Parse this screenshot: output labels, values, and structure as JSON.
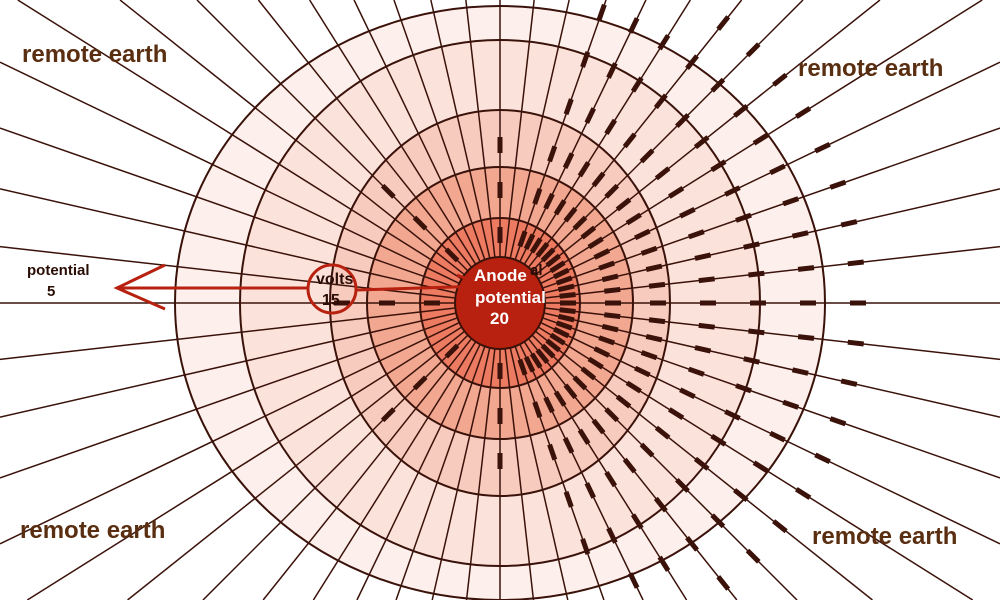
{
  "labels": {
    "remote_earth_tl": "remote earth",
    "remote_earth_tr": "remote earth",
    "remote_earth_bl": "remote earth",
    "remote_earth_br": "remote earth",
    "potential_5_label": "potential",
    "potential_5_value": "5",
    "volts_label": "volts",
    "volts_value": "15",
    "anode_label": "Anode",
    "anode_potential_label": "potential",
    "anode_value": "20",
    "hidden_partial": "al"
  },
  "colors": {
    "anode": "#b8200f",
    "ring1": "#ec7b62",
    "ring2": "#f2a790",
    "ring3": "#f7cbbd",
    "ring4": "#fbe3dc",
    "ring5": "#fdf0ec",
    "lines": "#3a120a",
    "arrow": "#b8200f"
  }
}
